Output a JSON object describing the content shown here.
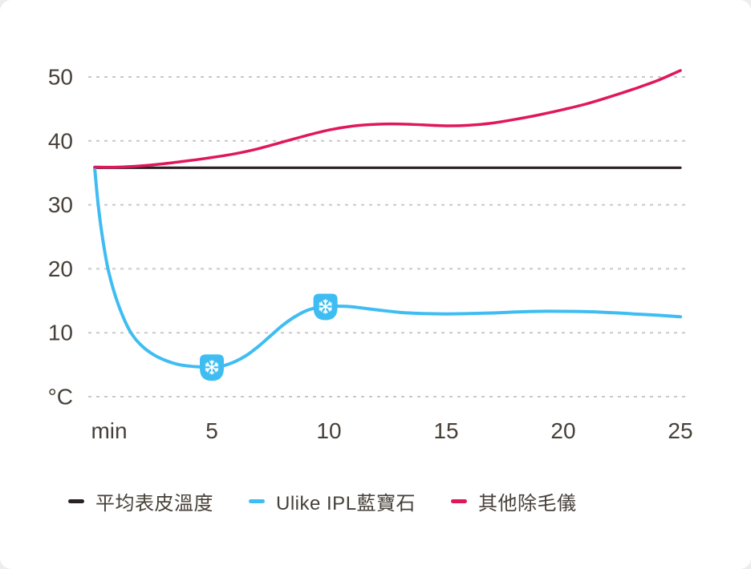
{
  "chart_data": {
    "type": "line",
    "title": "",
    "xlabel": "min",
    "ylabel": "°C",
    "x_range": [
      0,
      25
    ],
    "y_range": [
      0,
      52
    ],
    "grid": "horizontal-dashed",
    "grid_color": "#c9c9c9",
    "axis_text_color": "#474039",
    "x_ticks": [
      {
        "t": 0,
        "label": "min"
      },
      {
        "t": 5,
        "label": "5"
      },
      {
        "t": 10,
        "label": "10"
      },
      {
        "t": 15,
        "label": "15"
      },
      {
        "t": 20,
        "label": "20"
      },
      {
        "t": 25,
        "label": "25"
      }
    ],
    "y_ticks": [
      {
        "v": 0,
        "label": "°C"
      },
      {
        "v": 10,
        "label": "10"
      },
      {
        "v": 20,
        "label": "20"
      },
      {
        "v": 30,
        "label": "30"
      },
      {
        "v": 40,
        "label": "40"
      },
      {
        "v": 50,
        "label": "50"
      }
    ],
    "series": [
      {
        "key": "average-skin-temp",
        "name": "平均表皮溫度",
        "color": "#2a2124",
        "width": 3.2,
        "smooth": false,
        "points": [
          [
            0,
            35.8
          ],
          [
            25,
            35.8
          ]
        ]
      },
      {
        "key": "ulike-ipl-sapphire",
        "name": "Ulike IPL藍寶石",
        "color": "#3fbdf2",
        "width": 4,
        "smooth": true,
        "points": [
          [
            0,
            35.8
          ],
          [
            0.15,
            30
          ],
          [
            0.35,
            24.5
          ],
          [
            0.6,
            19.5
          ],
          [
            1,
            14.5
          ],
          [
            1.5,
            10.3
          ],
          [
            2,
            8
          ],
          [
            2.5,
            6.6
          ],
          [
            3,
            5.7
          ],
          [
            3.5,
            5.1
          ],
          [
            4,
            4.8
          ],
          [
            4.5,
            4.65
          ],
          [
            5,
            4.6
          ],
          [
            5.5,
            4.85
          ],
          [
            6,
            5.5
          ],
          [
            6.5,
            6.5
          ],
          [
            7,
            7.9
          ],
          [
            7.5,
            9.5
          ],
          [
            8,
            11.1
          ],
          [
            8.5,
            12.4
          ],
          [
            9,
            13.4
          ],
          [
            9.5,
            13.95
          ],
          [
            10,
            14.15
          ],
          [
            10.5,
            14.15
          ],
          [
            11,
            14.05
          ],
          [
            12,
            13.6
          ],
          [
            13,
            13.2
          ],
          [
            14,
            13
          ],
          [
            15,
            12.95
          ],
          [
            16,
            13
          ],
          [
            17,
            13.1
          ],
          [
            18,
            13.25
          ],
          [
            19,
            13.35
          ],
          [
            20,
            13.35
          ],
          [
            21,
            13.3
          ],
          [
            22,
            13.15
          ],
          [
            23,
            12.95
          ],
          [
            24,
            12.75
          ],
          [
            25,
            12.5
          ]
        ]
      },
      {
        "key": "other-hair-removal-devices",
        "name": "其他除毛儀",
        "color": "#e0175b",
        "width": 3.5,
        "smooth": true,
        "points": [
          [
            0,
            35.9
          ],
          [
            1,
            35.9
          ],
          [
            2,
            36.1
          ],
          [
            3,
            36.45
          ],
          [
            4,
            36.9
          ],
          [
            5,
            37.4
          ],
          [
            6,
            38
          ],
          [
            7,
            38.8
          ],
          [
            8,
            39.8
          ],
          [
            9,
            40.8
          ],
          [
            10,
            41.7
          ],
          [
            11,
            42.3
          ],
          [
            12,
            42.6
          ],
          [
            13,
            42.65
          ],
          [
            14,
            42.5
          ],
          [
            15,
            42.35
          ],
          [
            16,
            42.45
          ],
          [
            17,
            42.8
          ],
          [
            18,
            43.4
          ],
          [
            19,
            44.1
          ],
          [
            20,
            44.9
          ],
          [
            21,
            45.8
          ],
          [
            22,
            46.9
          ],
          [
            23,
            48.1
          ],
          [
            24,
            49.4
          ],
          [
            25,
            51
          ]
        ]
      }
    ],
    "markers": [
      {
        "series_key": "ulike-ipl-sapphire",
        "t": 5,
        "v": 4.6,
        "icon": "snowflake"
      },
      {
        "series_key": "ulike-ipl-sapphire",
        "t": 9.85,
        "v": 14.1,
        "icon": "snowflake"
      }
    ],
    "legend": {
      "position": "bottom-left"
    }
  }
}
